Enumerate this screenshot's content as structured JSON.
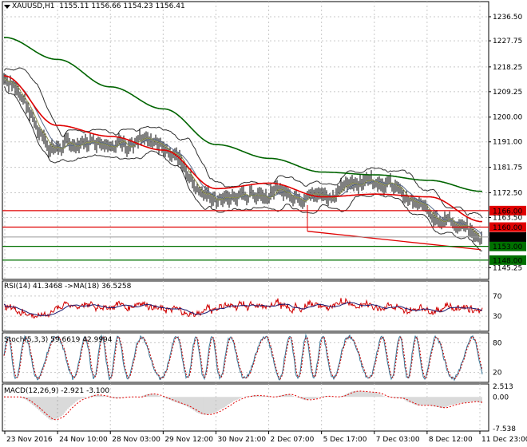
{
  "colors": {
    "grid": "#c8c8c8",
    "price": "#000000",
    "ma_fast": "#5a6b8c",
    "ma_mid": "#8b8f4a",
    "ma_red": "#e00000",
    "ma_green": "#006400",
    "bollinger": "#303030",
    "level_red": "#e00000",
    "level_green": "#007000",
    "current_price_bg": "#000000",
    "rsi_line": "#d00000",
    "rsi_ma": "#1a1a6e",
    "stoch_main": "#3a7a9a",
    "stoch_signal": "#c00000",
    "macd_hist": "#c0c0c0",
    "macd_signal": "#e00000"
  },
  "header": {
    "symbol": "XAUUSD,H1",
    "ohlc": "1155.11 1156.66 1154.23 1156.41"
  },
  "price_axis": {
    "ticks": [
      "1236.50",
      "1227.75",
      "1218.25",
      "1209.25",
      "1200.00",
      "1191.00",
      "1181.75",
      "1172.50",
      "1163.50",
      "1145.25"
    ]
  },
  "levels": [
    {
      "label": "1166.00",
      "value": 1166.0,
      "color": "#e00000",
      "bg": "#e00000"
    },
    {
      "label": "1160.00",
      "value": 1160.0,
      "color": "#e00000",
      "bg": "#e00000"
    },
    {
      "label": "1153.00",
      "value": 1153.0,
      "color": "#007000",
      "bg": "#007000"
    },
    {
      "label": "1148.00",
      "value": 1148.0,
      "color": "#007000",
      "bg": "#007000"
    }
  ],
  "current_price": {
    "label": "1156.41",
    "value": 1156.41
  },
  "rsi": {
    "title": "RSI(14) 41.3468  ->MA(18) 36.5258",
    "ticks": [
      "70",
      "30"
    ]
  },
  "stoch": {
    "title": "Stoch(5,3,3) 59.6619 42.9994",
    "ticks": [
      "80",
      "20"
    ]
  },
  "macd": {
    "title": "MACD(12,26,9) -2.921 -3.100",
    "ticks": [
      "2.513",
      "0.00",
      "-7.538"
    ]
  },
  "time_axis": [
    "23 Nov 2016",
    "24 Nov 10:00",
    "28 Nov 03:00",
    "29 Nov 12:00",
    "30 Nov 21:00",
    "2 Dec 07:00",
    "5 Dec 17:00",
    "7 Dec 03:00",
    "8 Dec 12:00",
    "11 Dec 23:00"
  ],
  "chart_data": {
    "type": "line",
    "symbol": "XAUUSD",
    "timeframe": "H1",
    "ylim": [
      1141,
      1242
    ],
    "x": [
      "23 Nov 2016",
      "24 Nov 10:00",
      "28 Nov 03:00",
      "29 Nov 12:00",
      "30 Nov 21:00",
      "2 Dec 07:00",
      "5 Dec 17:00",
      "7 Dec 03:00",
      "8 Dec 12:00",
      "11 Dec 23:00"
    ],
    "series": [
      {
        "values": [
          1214,
          1189,
          1192,
          1189,
          1170,
          1173,
          1172,
          1178,
          1166,
          1156
        ]
      },
      {
        "values": [
          1213,
          1188,
          1191,
          1189,
          1171,
          1173,
          1172,
          1177,
          1167,
          1157
        ]
      },
      {
        "values": [
          1215,
          1197,
          1193,
          1188,
          1174,
          1176,
          1171,
          1172,
          1171,
          1162
        ]
      },
      {
        "values": [
          1229,
          1221,
          1211,
          1203,
          1190,
          1185,
          1180,
          1179,
          1177,
          1173
        ]
      }
    ]
  }
}
